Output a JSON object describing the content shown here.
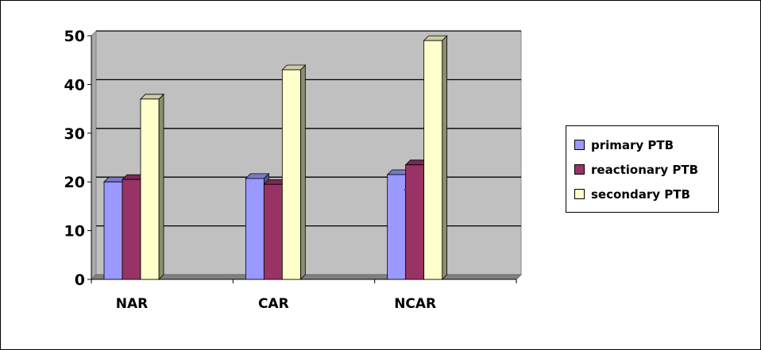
{
  "chart_data": {
    "type": "bar",
    "style": "3d-clustered-column",
    "categories": [
      "NAR",
      "CAR",
      "NCAR"
    ],
    "series": [
      {
        "name": "primary PTB",
        "values": [
          20,
          20.7,
          21.5
        ],
        "color": "#9999FF"
      },
      {
        "name": "reactionary PTB",
        "values": [
          20.5,
          19.5,
          23.5
        ],
        "color": "#993366"
      },
      {
        "name": "secondary PTB",
        "values": [
          37,
          43,
          49
        ],
        "color": "#FFFFCC"
      }
    ],
    "ylim": [
      0,
      50
    ],
    "yticks": [
      "0",
      "10",
      "20",
      "30",
      "40",
      "50"
    ],
    "grid": true,
    "wall_color": "#C0C0C0",
    "legend_position": "right"
  }
}
